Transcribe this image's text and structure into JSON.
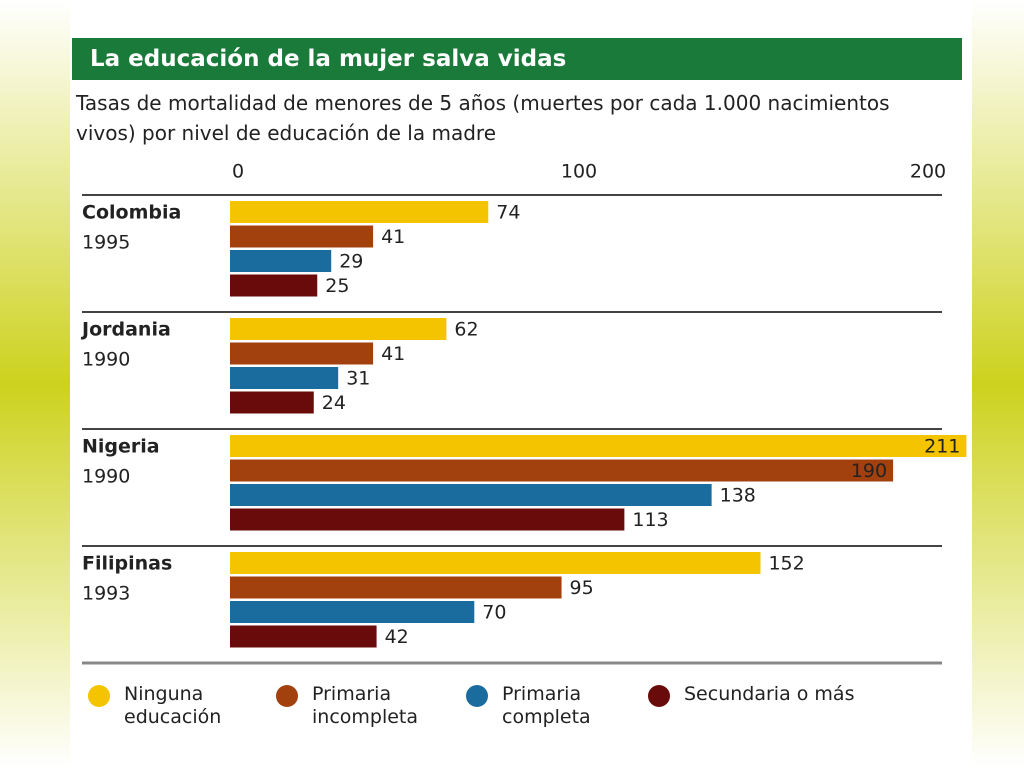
{
  "chart_data": {
    "type": "bar",
    "title": "La educación de la mujer salva vidas",
    "subtitle": "Tasas de mortalidad de menores de 5 años (muertes por cada 1.000 nacimientos vivos) por nivel de educación de la madre",
    "categories": [
      "Colombia",
      "Jordania",
      "Nigeria",
      "Filipinas"
    ],
    "category_years": [
      "1995",
      "1990",
      "1990",
      "1993"
    ],
    "series": [
      {
        "name": "Ninguna educación",
        "color": "#f5c400",
        "values": [
          74,
          62,
          211,
          152
        ]
      },
      {
        "name": "Primaria incompleta",
        "color": "#a3410e",
        "values": [
          41,
          41,
          190,
          95
        ]
      },
      {
        "name": "Primaria completa",
        "color": "#1b6c9e",
        "values": [
          29,
          31,
          138,
          70
        ]
      },
      {
        "name": "Secundaria o más",
        "color": "#6a0b0b",
        "values": [
          25,
          24,
          113,
          42
        ]
      }
    ],
    "xlim": [
      0,
      200
    ],
    "xticks": [
      0,
      100,
      200
    ],
    "orientation": "horizontal",
    "legend": "bottom"
  }
}
